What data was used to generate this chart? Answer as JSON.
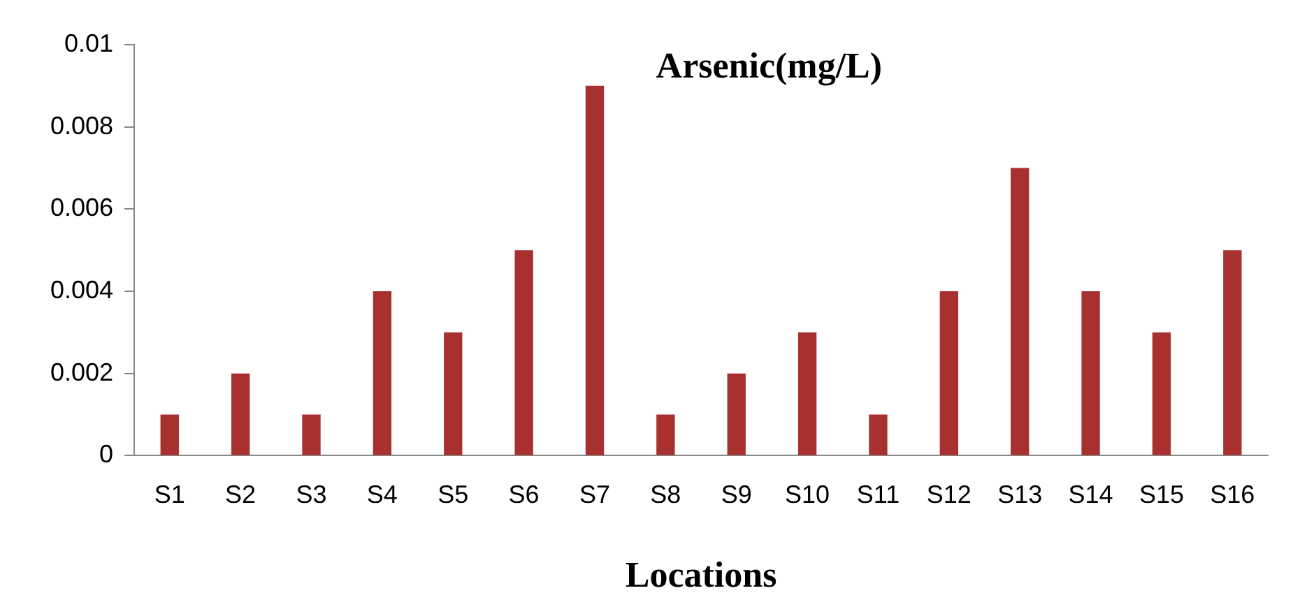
{
  "chart_data": {
    "type": "bar",
    "title": "Arsenic(mg/L)",
    "xlabel": "Locations",
    "categories": [
      "S1",
      "S2",
      "S3",
      "S4",
      "S5",
      "S6",
      "S7",
      "S8",
      "S9",
      "S10",
      "S11",
      "S12",
      "S13",
      "S14",
      "S15",
      "S16"
    ],
    "values": [
      0.001,
      0.002,
      0.001,
      0.004,
      0.003,
      0.005,
      0.009,
      0.001,
      0.002,
      0.003,
      0.001,
      0.004,
      0.007,
      0.004,
      0.003,
      0.005
    ],
    "color": "#a8302f",
    "ylim": [
      0,
      0.01
    ],
    "yticks": [
      0,
      0.002,
      0.004,
      0.006,
      0.008,
      0.01
    ],
    "grid": false,
    "legend": false
  }
}
